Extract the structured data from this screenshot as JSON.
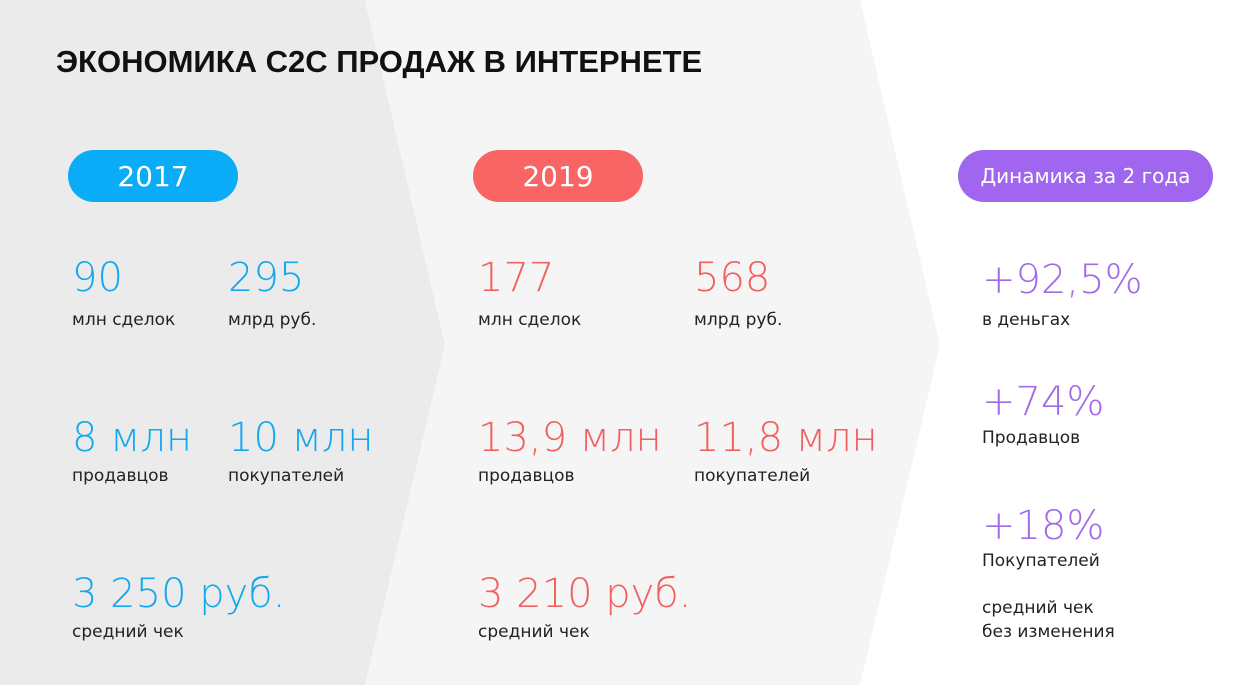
{
  "title": "ЭКОНОМИКА C2C ПРОДАЖ В ИНТЕРНЕТЕ",
  "columns": [
    {
      "badge": "2017",
      "items": [
        {
          "value": "90",
          "label": "млн сделок"
        },
        {
          "value": "295",
          "label": "млрд руб."
        },
        {
          "value": "8 млн",
          "label": "продавцов"
        },
        {
          "value": "10 млн",
          "label": "покупателей"
        },
        {
          "value": "3 250 руб.",
          "label": "средний чек"
        }
      ]
    },
    {
      "badge": "2019",
      "items": [
        {
          "value": "177",
          "label": "млн сделок"
        },
        {
          "value": "568",
          "label": "млрд руб."
        },
        {
          "value": "13,9 млн",
          "label": "продавцов"
        },
        {
          "value": "11,8 млн",
          "label": "покупателей"
        },
        {
          "value": "3 210 руб.",
          "label": "средний чек"
        }
      ]
    }
  ],
  "dynamics": {
    "badge": "Динамика за 2 года",
    "items": [
      {
        "value": "+92,5%",
        "label": "в деньгах"
      },
      {
        "value": "+74%",
        "label": "Продавцов"
      },
      {
        "value": "+18%",
        "label": "Покупателей"
      }
    ],
    "note": [
      "средний чек",
      "без изменения"
    ]
  }
}
